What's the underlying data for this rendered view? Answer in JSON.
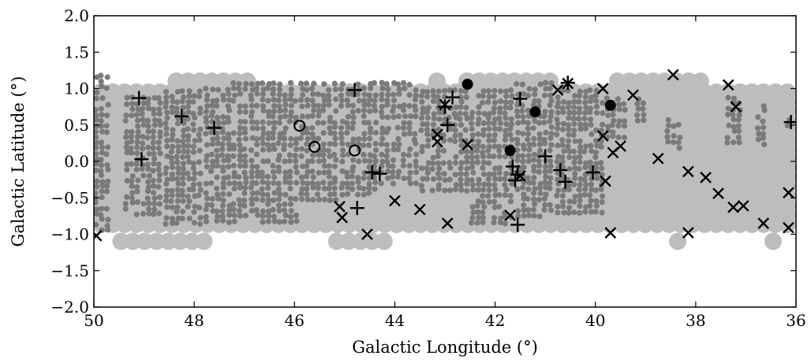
{
  "chart_data": {
    "type": "scatter",
    "title": "",
    "xlabel": "Galactic Longitude (°)",
    "ylabel": "Galactic Latitude (°)",
    "xlim": [
      50,
      36
    ],
    "ylim": [
      -2.0,
      2.0
    ],
    "x_ticks": [
      50,
      48,
      46,
      44,
      42,
      40,
      38,
      36
    ],
    "x_tick_labels": [
      "50",
      "48",
      "46",
      "44",
      "42",
      "40",
      "38",
      "36"
    ],
    "y_ticks": [
      -2.0,
      -1.5,
      -1.0,
      -0.5,
      0.0,
      0.5,
      1.0,
      1.5,
      2.0
    ],
    "y_tick_labels": [
      "−2.0",
      "−1.5",
      "−1.0",
      "−0.5",
      "0.0",
      "0.5",
      "1.0",
      "1.5",
      "2.0"
    ],
    "grid": false,
    "legend": "none",
    "colors": {
      "survey_outer": "#bdbdbd",
      "survey_inner": "#7a7a7a",
      "markers": "#000000"
    },
    "coverage_regions": {
      "outer": [
        {
          "x0": 50,
          "x1": 36,
          "y0": -1.05,
          "y1": 1.05
        },
        {
          "x0": 49.6,
          "x1": 47.6,
          "y0": -1.2,
          "y1": -1.0
        },
        {
          "x0": 48.5,
          "x1": 46.6,
          "y0": 1.0,
          "y1": 1.2
        },
        {
          "x0": 45.3,
          "x1": 44.0,
          "y0": -1.2,
          "y1": -1.0
        },
        {
          "x0": 43.3,
          "x1": 42.8,
          "y0": 1.0,
          "y1": 1.2
        },
        {
          "x0": 42.7,
          "x1": 40.6,
          "y0": 1.0,
          "y1": 1.2
        },
        {
          "x0": 39.7,
          "x1": 37.6,
          "y0": 1.0,
          "y1": 1.2
        },
        {
          "x0": 38.5,
          "x1": 38.0,
          "y0": -1.2,
          "y1": -1.0
        },
        {
          "x0": 36.6,
          "x1": 36.1,
          "y0": -1.2,
          "y1": -1.0
        }
      ],
      "inner": [
        {
          "x0": 50.0,
          "x1": 49.6,
          "y0": -1.0,
          "y1": 1.2
        },
        {
          "x0": 49.4,
          "x1": 48.6,
          "y0": -0.8,
          "y1": 0.9
        },
        {
          "x0": 48.6,
          "x1": 47.8,
          "y0": -0.9,
          "y1": 1.0
        },
        {
          "x0": 47.8,
          "x1": 46.9,
          "y0": -0.9,
          "y1": 1.1
        },
        {
          "x0": 46.9,
          "x1": 45.9,
          "y0": -0.9,
          "y1": 1.1
        },
        {
          "x0": 45.9,
          "x1": 45.1,
          "y0": -0.6,
          "y1": 1.1
        },
        {
          "x0": 45.1,
          "x1": 44.3,
          "y0": -0.5,
          "y1": 1.1
        },
        {
          "x0": 44.3,
          "x1": 43.5,
          "y0": -0.4,
          "y1": 1.1
        },
        {
          "x0": 43.5,
          "x1": 42.5,
          "y0": -0.5,
          "y1": 1.0
        },
        {
          "x0": 42.5,
          "x1": 41.6,
          "y0": -0.9,
          "y1": 1.0
        },
        {
          "x0": 41.6,
          "x1": 40.8,
          "y0": -0.8,
          "y1": 1.1
        },
        {
          "x0": 40.8,
          "x1": 39.8,
          "y0": -0.8,
          "y1": 1.0
        },
        {
          "x0": 39.8,
          "x1": 39.3,
          "y0": 0.3,
          "y1": 0.9
        },
        {
          "x0": 39.2,
          "x1": 38.9,
          "y0": 0.5,
          "y1": 0.9
        },
        {
          "x0": 38.6,
          "x1": 38.2,
          "y0": 0.1,
          "y1": 0.6
        },
        {
          "x0": 37.4,
          "x1": 37.0,
          "y0": 0.2,
          "y1": 0.9
        },
        {
          "x0": 36.8,
          "x1": 36.5,
          "y0": 0.2,
          "y1": 0.8
        },
        {
          "x0": 36.2,
          "x1": 36.0,
          "y0": 0.4,
          "y1": 0.6
        }
      ]
    },
    "series": [
      {
        "marker": "plus",
        "points": [
          [
            49.1,
            0.87
          ],
          [
            49.05,
            0.03
          ],
          [
            48.25,
            0.62
          ],
          [
            47.6,
            0.46
          ],
          [
            44.8,
            0.98
          ],
          [
            44.75,
            -0.64
          ],
          [
            44.45,
            -0.15
          ],
          [
            44.3,
            -0.17
          ],
          [
            43.0,
            0.75
          ],
          [
            42.95,
            0.5
          ],
          [
            42.85,
            0.88
          ],
          [
            41.5,
            0.86
          ],
          [
            41.65,
            -0.07
          ],
          [
            41.6,
            -0.26
          ],
          [
            41.55,
            -0.18
          ],
          [
            41.55,
            -0.87
          ],
          [
            41.0,
            0.07
          ],
          [
            40.7,
            -0.12
          ],
          [
            40.6,
            -0.28
          ],
          [
            40.55,
            1.08
          ],
          [
            40.05,
            -0.15
          ],
          [
            36.1,
            0.54
          ]
        ]
      },
      {
        "marker": "cross",
        "points": [
          [
            49.95,
            -1.02
          ],
          [
            45.1,
            -0.62
          ],
          [
            45.05,
            -0.77
          ],
          [
            44.55,
            -1.0
          ],
          [
            44.0,
            -0.54
          ],
          [
            43.5,
            -0.66
          ],
          [
            43.15,
            0.37
          ],
          [
            43.15,
            0.27
          ],
          [
            43.0,
            0.78
          ],
          [
            42.95,
            -0.85
          ],
          [
            42.55,
            0.23
          ],
          [
            41.7,
            -0.74
          ],
          [
            41.5,
            -0.2
          ],
          [
            40.75,
            0.98
          ],
          [
            40.55,
            1.07
          ],
          [
            39.85,
            1.0
          ],
          [
            39.85,
            0.35
          ],
          [
            39.8,
            -0.27
          ],
          [
            39.7,
            -0.98
          ],
          [
            39.65,
            0.12
          ],
          [
            39.5,
            0.21
          ],
          [
            39.25,
            0.91
          ],
          [
            38.75,
            0.04
          ],
          [
            38.45,
            1.19
          ],
          [
            38.15,
            -0.14
          ],
          [
            38.15,
            -0.98
          ],
          [
            37.8,
            -0.22
          ],
          [
            37.55,
            -0.44
          ],
          [
            37.35,
            1.05
          ],
          [
            37.25,
            -0.63
          ],
          [
            37.2,
            0.75
          ],
          [
            37.05,
            -0.61
          ],
          [
            36.65,
            -0.85
          ],
          [
            36.15,
            -0.43
          ],
          [
            36.15,
            -0.91
          ]
        ]
      },
      {
        "marker": "filled-circle",
        "points": [
          [
            42.55,
            1.06
          ],
          [
            41.7,
            0.15
          ],
          [
            41.2,
            0.68
          ],
          [
            39.7,
            0.77
          ]
        ]
      },
      {
        "marker": "open-circle",
        "points": [
          [
            45.9,
            0.49
          ],
          [
            45.6,
            0.2
          ],
          [
            44.8,
            0.15
          ]
        ]
      }
    ]
  }
}
